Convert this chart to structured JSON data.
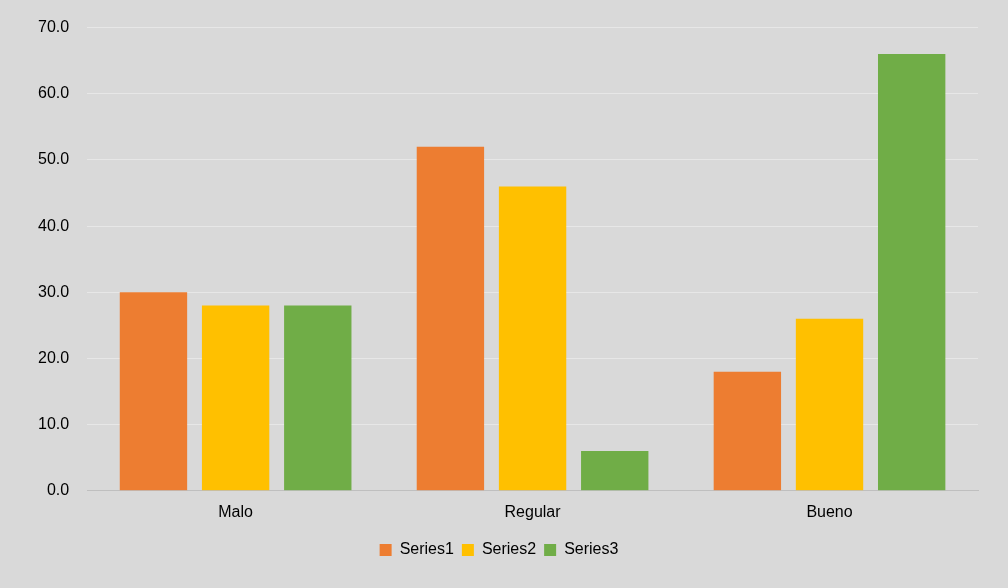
{
  "chart_data": {
    "type": "bar",
    "categories": [
      "Malo",
      "Regular",
      "Bueno"
    ],
    "series": [
      {
        "name": "Series1",
        "color": "#ed7d31",
        "values": [
          30,
          52,
          18
        ]
      },
      {
        "name": "Series2",
        "color": "#ffc000",
        "values": [
          28,
          46,
          26
        ]
      },
      {
        "name": "Series3",
        "color": "#70ad47",
        "values": [
          28,
          6,
          66
        ]
      }
    ],
    "ylim": [
      0,
      70
    ],
    "yticks": [
      {
        "value": 0,
        "label": "0.0"
      },
      {
        "value": 10,
        "label": "10.0"
      },
      {
        "value": 20,
        "label": "20.0"
      },
      {
        "value": 30,
        "label": "30.0"
      },
      {
        "value": 40,
        "label": "40.0"
      },
      {
        "value": 50,
        "label": "50.0"
      },
      {
        "value": 60,
        "label": "60.0"
      },
      {
        "value": 70,
        "label": "70.0"
      }
    ],
    "grid": "y",
    "legend": "bottom"
  }
}
